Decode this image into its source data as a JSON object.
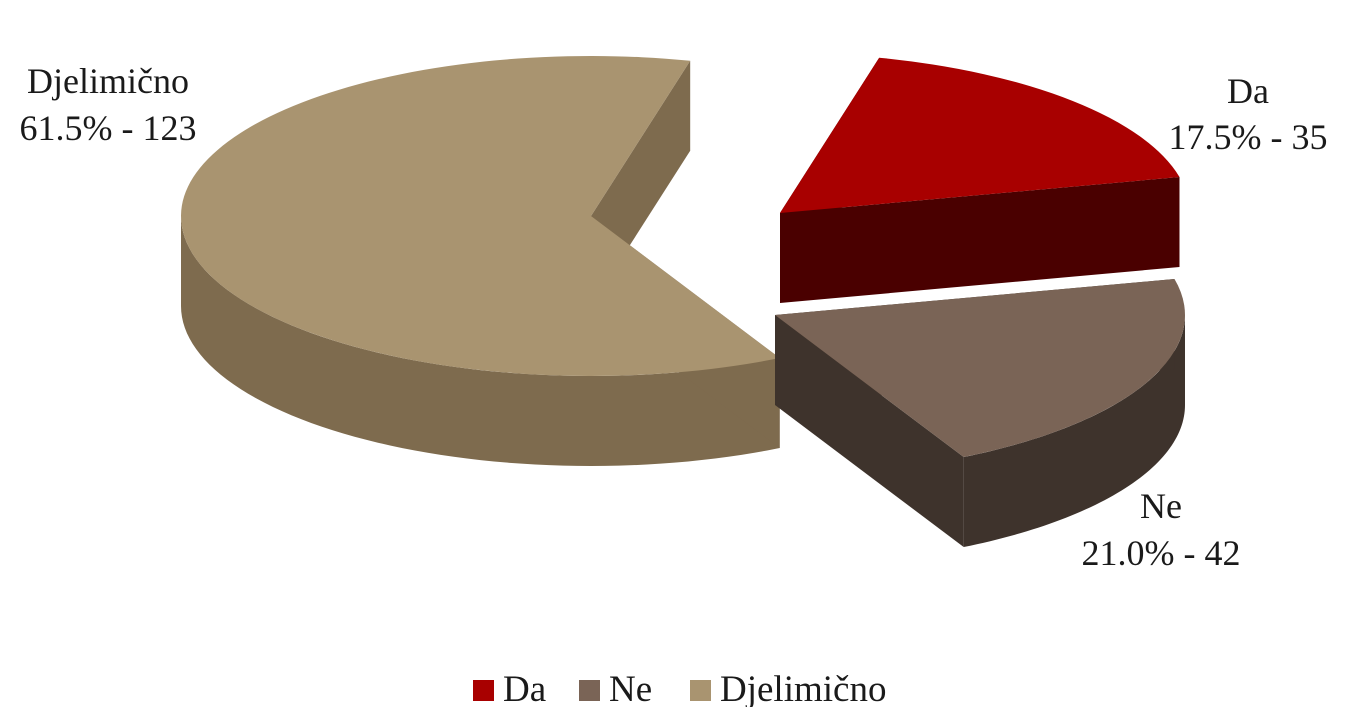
{
  "chart_data": {
    "type": "pie",
    "style": "3d-exploded",
    "categories": [
      "Da",
      "Ne",
      "Djelimično"
    ],
    "values": [
      35,
      42,
      123
    ],
    "percentages": [
      17.5,
      21.0,
      61.5
    ],
    "data_labels": [
      {
        "name": "Da",
        "value": "17.5% - 35"
      },
      {
        "name": "Ne",
        "value": "21.0% - 42"
      },
      {
        "name": "Djelimično",
        "value": "61.5% - 123"
      }
    ],
    "colors": [
      "#A80000",
      "#7A6456",
      "#A99470"
    ],
    "side_colors": [
      "#4A0000",
      "#3E332C",
      "#7E6B4E"
    ],
    "legend": {
      "placement": "bottom",
      "entries": [
        "Da",
        "Ne",
        "Djelimično"
      ]
    },
    "title": ""
  }
}
